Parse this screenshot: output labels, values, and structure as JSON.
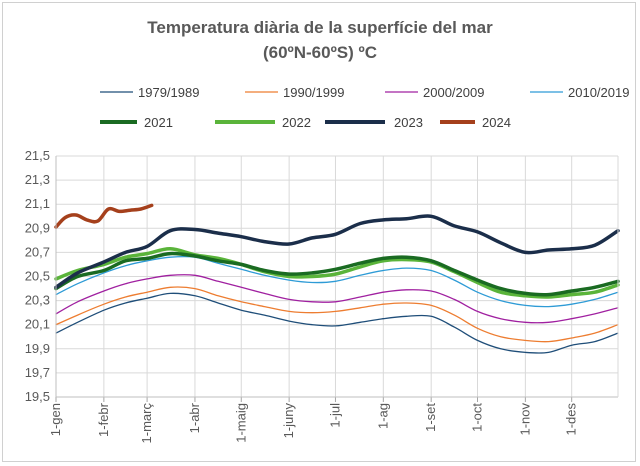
{
  "chart_data": {
    "type": "line",
    "title": "Temperatura diària de la superfície del mar",
    "subtitle": "(60ºN-60ºS) ºC",
    "xlabel": "",
    "ylabel": "",
    "ylim": [
      19.5,
      21.5
    ],
    "yticks": [
      "19,5",
      "19,7",
      "19,9",
      "20,1",
      "20,3",
      "20,5",
      "20,7",
      "20,9",
      "21,1",
      "21,3",
      "21,5"
    ],
    "grid": true,
    "legend": "top",
    "xlim": [
      1,
      365
    ],
    "categories": [
      "1-gen",
      "1-febr",
      "1-març",
      "1-abr",
      "1-maig",
      "1-juny",
      "1-jul",
      "1-ag",
      "1-set",
      "1-oct",
      "1-nov",
      "1-des"
    ],
    "category_days": [
      1,
      32,
      60,
      91,
      121,
      152,
      182,
      213,
      244,
      274,
      305,
      335
    ],
    "series": [
      {
        "name": "1979/1989",
        "color": "#1f4e79",
        "style": "thin",
        "x": [
          1,
          15,
          32,
          46,
          60,
          75,
          91,
          106,
          121,
          136,
          152,
          167,
          182,
          198,
          213,
          228,
          244,
          259,
          274,
          289,
          305,
          320,
          335,
          350,
          365
        ],
        "values": [
          20.03,
          20.12,
          20.22,
          20.28,
          20.32,
          20.36,
          20.34,
          20.28,
          20.22,
          20.18,
          20.13,
          20.1,
          20.09,
          20.12,
          20.15,
          20.17,
          20.17,
          20.08,
          19.97,
          19.9,
          19.87,
          19.87,
          19.93,
          19.96,
          20.03
        ]
      },
      {
        "name": "1990/1999",
        "color": "#ed7d31",
        "style": "thin",
        "x": [
          1,
          15,
          32,
          46,
          60,
          75,
          91,
          106,
          121,
          136,
          152,
          167,
          182,
          198,
          213,
          228,
          244,
          259,
          274,
          289,
          305,
          320,
          335,
          350,
          365
        ],
        "values": [
          20.1,
          20.18,
          20.27,
          20.33,
          20.37,
          20.41,
          20.4,
          20.34,
          20.29,
          20.25,
          20.21,
          20.2,
          20.21,
          20.24,
          20.27,
          20.28,
          20.26,
          20.18,
          20.07,
          20.0,
          19.97,
          19.96,
          19.99,
          20.03,
          20.1
        ]
      },
      {
        "name": "2000/2009",
        "color": "#a020a0",
        "style": "thin",
        "x": [
          1,
          15,
          32,
          46,
          60,
          75,
          91,
          106,
          121,
          136,
          152,
          167,
          182,
          198,
          213,
          228,
          244,
          259,
          274,
          289,
          305,
          320,
          335,
          350,
          365
        ],
        "values": [
          20.19,
          20.29,
          20.38,
          20.44,
          20.48,
          20.51,
          20.51,
          20.46,
          20.41,
          20.36,
          20.31,
          20.29,
          20.29,
          20.33,
          20.37,
          20.39,
          20.38,
          20.31,
          20.21,
          20.15,
          20.12,
          20.12,
          20.15,
          20.19,
          20.24
        ]
      },
      {
        "name": "2010/2019",
        "color": "#2e9bd6",
        "style": "thin",
        "x": [
          1,
          15,
          32,
          46,
          60,
          75,
          91,
          106,
          121,
          136,
          152,
          167,
          182,
          198,
          213,
          228,
          244,
          259,
          274,
          289,
          305,
          320,
          335,
          350,
          365
        ],
        "values": [
          20.35,
          20.44,
          20.53,
          20.59,
          20.63,
          20.66,
          20.66,
          20.61,
          20.56,
          20.51,
          20.47,
          20.45,
          20.46,
          20.51,
          20.55,
          20.57,
          20.55,
          20.47,
          20.37,
          20.3,
          20.26,
          20.25,
          20.27,
          20.31,
          20.37
        ]
      },
      {
        "name": "2021",
        "color": "#1a6b22",
        "style": "thick",
        "x": [
          1,
          15,
          32,
          46,
          60,
          75,
          91,
          106,
          121,
          136,
          152,
          167,
          182,
          198,
          213,
          228,
          244,
          259,
          274,
          289,
          305,
          320,
          335,
          350,
          365
        ],
        "values": [
          20.4,
          20.5,
          20.55,
          20.63,
          20.65,
          20.69,
          20.67,
          20.63,
          20.6,
          20.55,
          20.52,
          20.53,
          20.56,
          20.61,
          20.65,
          20.66,
          20.63,
          20.55,
          20.47,
          20.4,
          20.36,
          20.35,
          20.38,
          20.41,
          20.46
        ]
      },
      {
        "name": "2022",
        "color": "#5ab43a",
        "style": "thick",
        "x": [
          1,
          15,
          32,
          46,
          60,
          75,
          91,
          106,
          121,
          136,
          152,
          167,
          182,
          198,
          213,
          228,
          244,
          259,
          274,
          289,
          305,
          320,
          335,
          350,
          365
        ],
        "values": [
          20.48,
          20.55,
          20.6,
          20.66,
          20.69,
          20.73,
          20.68,
          20.65,
          20.6,
          20.54,
          20.5,
          20.5,
          20.52,
          20.58,
          20.63,
          20.64,
          20.62,
          20.54,
          20.45,
          20.37,
          20.34,
          20.33,
          20.35,
          20.37,
          20.43
        ]
      },
      {
        "name": "2023",
        "color": "#1b2e4a",
        "style": "thick",
        "x": [
          1,
          15,
          32,
          46,
          60,
          75,
          91,
          106,
          121,
          136,
          152,
          167,
          182,
          198,
          213,
          228,
          244,
          259,
          274,
          289,
          305,
          320,
          335,
          350,
          365
        ],
        "values": [
          20.41,
          20.53,
          20.62,
          20.7,
          20.75,
          20.88,
          20.89,
          20.86,
          20.83,
          20.79,
          20.77,
          20.82,
          20.85,
          20.94,
          20.97,
          20.98,
          21.0,
          20.92,
          20.87,
          20.78,
          20.7,
          20.72,
          20.73,
          20.76,
          20.88
        ]
      },
      {
        "name": "2024",
        "color": "#a5401c",
        "style": "thick",
        "x": [
          1,
          7,
          14,
          21,
          28,
          35,
          42,
          49,
          56,
          63
        ],
        "values": [
          20.91,
          20.99,
          21.01,
          20.97,
          20.96,
          21.06,
          21.04,
          21.05,
          21.06,
          21.09
        ]
      }
    ]
  }
}
